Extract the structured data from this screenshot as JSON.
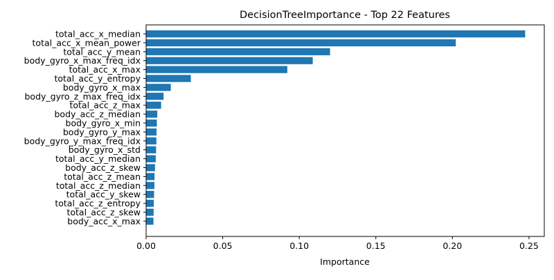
{
  "chart_data": {
    "type": "bar",
    "orientation": "horizontal",
    "title": "DecisionTreeImportance - Top 22 Features",
    "xlabel": "Importance",
    "ylabel": "",
    "xlim": [
      0,
      0.26
    ],
    "x_ticks": [
      0.0,
      0.05,
      0.1,
      0.15,
      0.2,
      0.25
    ],
    "x_tick_labels": [
      "0.00",
      "0.05",
      "0.10",
      "0.15",
      "0.20",
      "0.25"
    ],
    "grid": false,
    "bar_color": "#1f77b4",
    "categories": [
      "total_acc_x_median",
      "total_acc_x_mean_power",
      "total_acc_y_mean",
      "body_gyro_x_max_freq_idx",
      "total_acc_x_max",
      "total_acc_y_entropy",
      "body_gyro_x_max",
      "body_gyro_z_max_freq_idx",
      "total_acc_z_max",
      "body_acc_z_median",
      "body_gyro_x_min",
      "body_gyro_y_max",
      "body_gyro_y_max_freq_idx",
      "body_gyro_x_std",
      "total_acc_y_median",
      "body_acc_z_skew",
      "total_acc_z_mean",
      "total_acc_z_median",
      "total_acc_y_skew",
      "total_acc_z_entropy",
      "total_acc_z_skew",
      "body_acc_x_max"
    ],
    "values": [
      0.2475,
      0.2022,
      0.1201,
      0.1088,
      0.0922,
      0.0292,
      0.0161,
      0.0114,
      0.0098,
      0.0073,
      0.007,
      0.0068,
      0.0067,
      0.0065,
      0.0063,
      0.0058,
      0.0055,
      0.0054,
      0.0052,
      0.005,
      0.0049,
      0.0048
    ]
  }
}
